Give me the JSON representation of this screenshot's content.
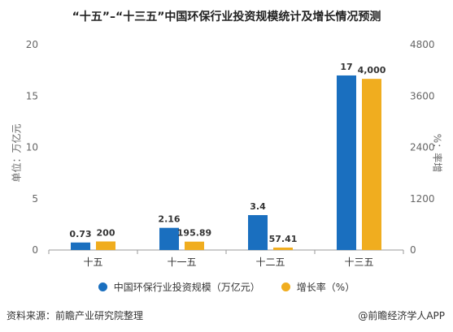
{
  "chart_data": {
    "type": "bar",
    "title": "“十五”–“十三五”中国环保行业投资规模统计及增长情况预测",
    "categories": [
      "十五",
      "十一五",
      "十二五",
      "十三五"
    ],
    "series": [
      {
        "name": "中国环保行业投资规模（万亿元）",
        "values": [
          0.73,
          2.16,
          3.4,
          17
        ],
        "labels": [
          "0.73",
          "2.16",
          "3.4",
          "17"
        ],
        "axis": "left",
        "color": "#1a6fbf"
      },
      {
        "name": "增长率（%）",
        "values": [
          200,
          195.89,
          57.41,
          4000
        ],
        "labels": [
          "200",
          "195.89",
          "57.41",
          "4,000"
        ],
        "axis": "right",
        "color": "#f0ad1f"
      }
    ],
    "ylabel_left": "单位：万亿元",
    "ylabel_right": "%：率增",
    "ylim_left": [
      0,
      20
    ],
    "ylim_right": [
      0,
      4800
    ],
    "yticks_left": [
      "0",
      "5",
      "10",
      "15",
      "20"
    ],
    "yticks_right": [
      "0",
      "1200",
      "2400",
      "3600",
      "4800"
    ],
    "grid": false,
    "legend": "bottom"
  },
  "footer": {
    "source": "资料来源：前瞻产业研究院整理",
    "brand": "@前瞻经济学人APP"
  }
}
